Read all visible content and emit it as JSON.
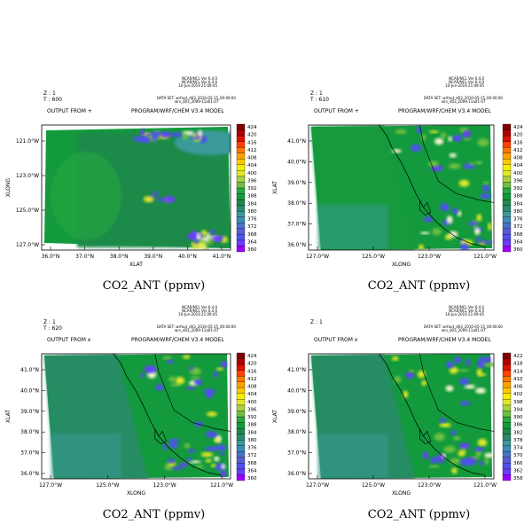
{
  "header_block": [
    "NCAR/NCL Ver 6.4.0",
    "NCAR/NCL Ver 6.4.0",
    "10-Jun-2019 21:09:45"
  ],
  "data_set": "DATA SET: wrfout_d03_2010-05-15_00:00:00",
  "data_set_line2": "wrs_d03_2009-11a01-07",
  "program": "PROGRAM/WRF/CHEM V3.4 MODEL",
  "output_from": "OUTPUT FROM",
  "colorbar_colors": [
    "#9b00ff",
    "#6a3cff",
    "#5050f0",
    "#5a5ad6",
    "#4874c8",
    "#3c8cba",
    "#3a9a9a",
    "#2a8a6c",
    "#1e8a4a",
    "#129a3c",
    "#28a840",
    "#6ec040",
    "#a8d040",
    "#e0e828",
    "#f0f000",
    "#ffc800",
    "#ffa000",
    "#ff7800",
    "#ff4000",
    "#e01000",
    "#b00000",
    "#800000"
  ],
  "panels": [
    {
      "z": "Z : 1",
      "t": "T : 600",
      "output_mark": "+",
      "title": "CO2_ANT (ppmv)",
      "y_axis_label": "XLONG",
      "x_axis_label": "XLAT",
      "y_ticks": [
        "121.0°W",
        "123.0°W",
        "125.0°W",
        "127.0°W"
      ],
      "x_ticks": [
        "36.0°N",
        "37.0°N",
        "38.0°N",
        "39.0°N",
        "40.0°N",
        "41.0°N"
      ],
      "colorbar_labels": [
        "424",
        "420",
        "416",
        "412",
        "408",
        "404",
        "400",
        "396",
        "392",
        "388",
        "384",
        "380",
        "376",
        "372",
        "368",
        "364",
        "360"
      ]
    },
    {
      "z": "Z : 1",
      "t": "T : 610",
      "output_mark": "+",
      "title": "CO2_ANT (ppmv)",
      "y_axis_label": "XLAT",
      "x_axis_label": "XLONG",
      "y_ticks": [
        "41.0°N",
        "40.0°N",
        "39.0°N",
        "38.0°N",
        "37.0°N",
        "36.0°N"
      ],
      "x_ticks": [
        "127.0°W",
        "125.0°W",
        "123.0°W",
        "121.0°W"
      ],
      "colorbar_labels": [
        "424",
        "420",
        "416",
        "412",
        "408",
        "404",
        "400",
        "396",
        "392",
        "388",
        "384",
        "380",
        "376",
        "372",
        "368",
        "364",
        "360"
      ]
    },
    {
      "z": "Z : 1",
      "t": "T : 620",
      "output_mark": "x",
      "title": "CO2_ANT (ppmv)",
      "y_axis_label": "XLAT",
      "x_axis_label": "XLONG",
      "y_ticks": [
        "41.0°N",
        "40.0°N",
        "39.0°N",
        "38.0°N",
        "37.0°N",
        "36.0°N"
      ],
      "x_ticks": [
        "127.0°W",
        "125.0°W",
        "123.0°W",
        "121.0°W"
      ],
      "colorbar_labels": [
        "424",
        "420",
        "416",
        "412",
        "408",
        "404",
        "400",
        "396",
        "392",
        "388",
        "384",
        "380",
        "376",
        "372",
        "368",
        "364",
        "360"
      ]
    },
    {
      "z": "Z : 1",
      "t": "",
      "output_mark": "x",
      "title": "CO2_ANT (ppmv)",
      "y_axis_label": "XLAT",
      "x_axis_label": "XLONG",
      "y_ticks": [
        "41.0°N",
        "40.0°N",
        "39.0°N",
        "38.0°N",
        "37.0°N",
        "36.0°N"
      ],
      "x_ticks": [
        "127.0°W",
        "125.0°W",
        "123.0°W",
        "121.0°W"
      ],
      "colorbar_labels": [
        "422",
        "418",
        "414",
        "410",
        "406",
        "402",
        "398",
        "394",
        "390",
        "386",
        "382",
        "378",
        "374",
        "370",
        "366",
        "362",
        "358"
      ]
    }
  ],
  "chart_data": [
    {
      "type": "heatmap",
      "title": "CO2_ANT (ppmv)",
      "variable": "CO2_ANT",
      "units": "ppmv",
      "time": "T : 600",
      "level": "Z : 1",
      "xlabel": "XLAT",
      "ylabel": "XLONG",
      "x_ticks": [
        "36.0°N",
        "37.0°N",
        "38.0°N",
        "39.0°N",
        "40.0°N",
        "41.0°N"
      ],
      "y_ticks": [
        "121.0°W",
        "123.0°W",
        "125.0°W",
        "127.0°W"
      ],
      "color_levels": [
        360,
        364,
        368,
        372,
        376,
        380,
        384,
        388,
        392,
        396,
        400,
        404,
        408,
        412,
        416,
        420,
        424
      ],
      "background_value": 386
    },
    {
      "type": "heatmap",
      "title": "CO2_ANT (ppmv)",
      "variable": "CO2_ANT",
      "units": "ppmv",
      "time": "T : 610",
      "level": "Z : 1",
      "xlabel": "XLONG",
      "ylabel": "XLAT",
      "x_ticks": [
        "127.0°W",
        "125.0°W",
        "123.0°W",
        "121.0°W"
      ],
      "y_ticks": [
        "41.0°N",
        "40.0°N",
        "39.0°N",
        "38.0°N",
        "37.0°N",
        "36.0°N"
      ],
      "color_levels": [
        360,
        364,
        368,
        372,
        376,
        380,
        384,
        388,
        392,
        396,
        400,
        404,
        408,
        412,
        416,
        420,
        424
      ],
      "background_value": 386
    },
    {
      "type": "heatmap",
      "title": "CO2_ANT (ppmv)",
      "variable": "CO2_ANT",
      "units": "ppmv",
      "time": "T : 620",
      "level": "Z : 1",
      "xlabel": "XLONG",
      "ylabel": "XLAT",
      "x_ticks": [
        "127.0°W",
        "125.0°W",
        "123.0°W",
        "121.0°W"
      ],
      "y_ticks": [
        "41.0°N",
        "40.0°N",
        "39.0°N",
        "38.0°N",
        "37.0°N",
        "36.0°N"
      ],
      "color_levels": [
        360,
        364,
        368,
        372,
        376,
        380,
        384,
        388,
        392,
        396,
        400,
        404,
        408,
        412,
        416,
        420,
        424
      ],
      "background_value": 384
    },
    {
      "type": "heatmap",
      "title": "CO2_ANT (ppmv)",
      "variable": "CO2_ANT",
      "units": "ppmv",
      "level": "Z : 1",
      "xlabel": "XLONG",
      "ylabel": "XLAT",
      "x_ticks": [
        "127.0°W",
        "125.0°W",
        "123.0°W",
        "121.0°W"
      ],
      "y_ticks": [
        "41.0°N",
        "40.0°N",
        "39.0°N",
        "38.0°N",
        "37.0°N",
        "36.0°N"
      ],
      "color_levels": [
        358,
        362,
        366,
        370,
        374,
        378,
        382,
        386,
        390,
        394,
        398,
        402,
        406,
        410,
        414,
        418,
        422
      ],
      "background_value": 384
    }
  ]
}
